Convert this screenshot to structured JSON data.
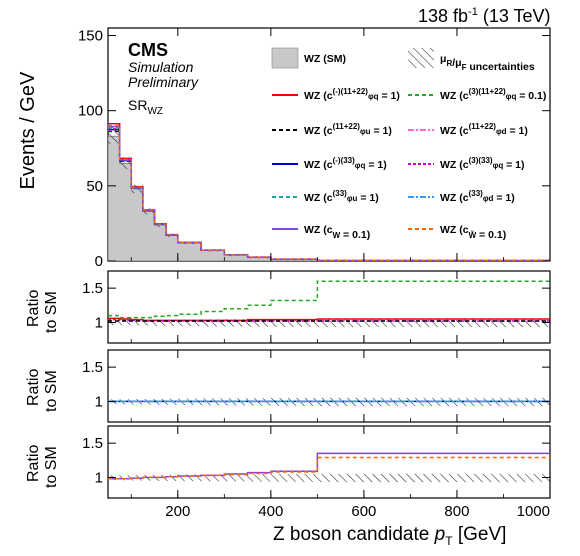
{
  "header": {
    "lumi": "138 fb",
    "lumi_exp": "-1",
    "energy": "(13 TeV)",
    "cms": "CMS",
    "simulation": "Simulation",
    "preliminary": "Preliminary",
    "region": "SR",
    "region_sub": "WZ"
  },
  "chart_data": {
    "type": "step",
    "xlabel": "Z boson candidate p_T [GeV]",
    "xlim": [
      50,
      1000
    ],
    "x_ticks": [
      "200",
      "400",
      "600",
      "800",
      "1000"
    ],
    "bin_edges": [
      50,
      75,
      100,
      125,
      150,
      175,
      200,
      250,
      300,
      350,
      400,
      500,
      1000
    ],
    "panels": [
      {
        "ylabel": "Events / GeV",
        "ylim": [
          0,
          155
        ],
        "y_ticks": [
          "0",
          "50",
          "100",
          "150"
        ],
        "sm": [
          83,
          65,
          48,
          33,
          24,
          17,
          12,
          7,
          4,
          2.5,
          1.2,
          0.3
        ],
        "eft_scale": [
          1.1,
          1.05,
          1.03,
          1.03,
          1.03,
          1.03,
          1.03,
          1.03,
          1.03,
          1.03,
          1.03,
          1.03
        ]
      },
      {
        "ylabel": "Ratio to SM",
        "ylim": [
          0.7,
          1.75
        ],
        "y_ticks": [
          "1",
          "1.5"
        ],
        "lines": [
          {
            "color": "#ee0000",
            "dash": "",
            "ratio": [
              1.06,
              1.05,
              1.04,
              1.03,
              1.03,
              1.03,
              1.03,
              1.03,
              1.03,
              1.04,
              1.04,
              1.05
            ]
          },
          {
            "color": "#22aa22",
            "dash": "4,3",
            "ratio": [
              1.1,
              1.07,
              1.07,
              1.07,
              1.09,
              1.1,
              1.12,
              1.16,
              1.2,
              1.25,
              1.32,
              1.6
            ]
          },
          {
            "color": "#cc00cc",
            "dash": "3,2",
            "ratio": [
              1.04,
              1.03,
              1.03,
              1.02,
              1.02,
              1.02,
              1.02,
              1.02,
              1.02,
              1.02,
              1.02,
              1.02
            ]
          },
          {
            "color": "#000000",
            "dash": "4,3",
            "ratio": [
              1.02,
              1.02,
              1.02,
              1.02,
              1.02,
              1.02,
              1.02,
              1.02,
              1.02,
              1.02,
              1.02,
              1.02
            ]
          }
        ]
      },
      {
        "ylabel": "Ratio to SM",
        "ylim": [
          0.7,
          1.75
        ],
        "y_ticks": [
          "1",
          "1.5"
        ],
        "lines": [
          {
            "color": "#0000dd",
            "dash": "",
            "ratio": [
              1.0,
              1.0,
              1.0,
              1.0,
              1.0,
              1.0,
              1.0,
              1.0,
              1.0,
              1.0,
              1.0,
              1.0
            ]
          },
          {
            "color": "#17a6b0",
            "dash": "4,3",
            "ratio": [
              1.0,
              1.0,
              1.0,
              1.0,
              1.0,
              1.0,
              1.0,
              1.0,
              1.0,
              1.0,
              1.0,
              1.0
            ]
          },
          {
            "color": "#3399ff",
            "dash": "6,2,2,2",
            "ratio": [
              1.0,
              1.0,
              1.0,
              1.0,
              1.0,
              1.0,
              1.0,
              1.0,
              1.0,
              1.0,
              1.0,
              1.0
            ]
          }
        ]
      },
      {
        "ylabel": "Ratio to SM",
        "ylim": [
          0.7,
          1.75
        ],
        "y_ticks": [
          "1",
          "1.5"
        ],
        "lines": [
          {
            "color": "#7744ee",
            "dash": "",
            "ratio": [
              0.98,
              0.98,
              0.99,
              1.0,
              1.0,
              1.01,
              1.02,
              1.03,
              1.05,
              1.07,
              1.09,
              1.35
            ]
          },
          {
            "color": "#ff6600",
            "dash": "4,3",
            "ratio": [
              0.98,
              0.98,
              0.99,
              1.0,
              1.0,
              1.01,
              1.02,
              1.03,
              1.04,
              1.06,
              1.08,
              1.29
            ]
          }
        ]
      }
    ],
    "legend": [
      {
        "label": "WZ (SM)",
        "type": "fill",
        "color": "#c8c8c8"
      },
      {
        "label": "μR/μF uncertainties",
        "type": "hatch",
        "color": "#333333"
      },
      {
        "label": "WZ (c^{(-)(11+22)}_{φq} = 1)",
        "type": "line",
        "color": "#ee0000",
        "dash": ""
      },
      {
        "label": "WZ (c^{(3)(11+22)}_{φq} = 0.1)",
        "type": "line",
        "color": "#22aa22",
        "dash": "4,3"
      },
      {
        "label": "WZ (c^{(11+22)}_{φu} = 1)",
        "type": "line",
        "color": "#000000",
        "dash": "4,3"
      },
      {
        "label": "WZ (c^{(11+22)}_{φd} = 1)",
        "type": "line",
        "color": "#ff66cc",
        "dash": "6,2,2,2"
      },
      {
        "label": "WZ (c^{(-)(33)}_{φq} = 1)",
        "type": "line",
        "color": "#0000dd",
        "dash": ""
      },
      {
        "label": "WZ (c^{(3)(33)}_{φq} = 1)",
        "type": "line",
        "color": "#cc00cc",
        "dash": "3,2"
      },
      {
        "label": "WZ (c^{(33)}_{φu} = 1)",
        "type": "line",
        "color": "#17a6b0",
        "dash": "4,3"
      },
      {
        "label": "WZ (c^{(33)}_{φd} = 1)",
        "type": "line",
        "color": "#3399ff",
        "dash": "6,2,2,2"
      },
      {
        "label": "WZ (c_{W} = 0.1)",
        "type": "line",
        "color": "#7744ee",
        "dash": ""
      },
      {
        "label": "WZ (c_{W̃} = 0.1)",
        "type": "line",
        "color": "#ff6600",
        "dash": "4,3"
      }
    ]
  }
}
